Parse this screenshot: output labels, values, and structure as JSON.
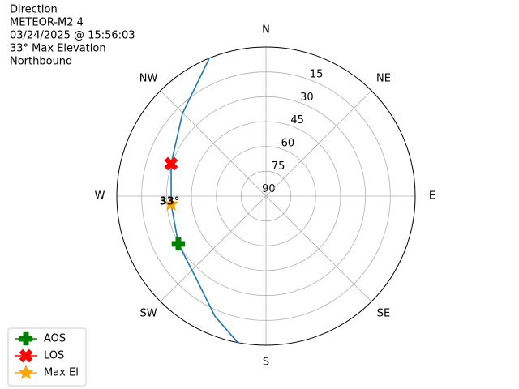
{
  "chart_data": {
    "type": "polar",
    "title": "Direction",
    "subtitle": [
      "METEOR-M2 4",
      "03/24/2025 @ 15:56:03",
      "33° Max Elevation",
      "Northbound"
    ],
    "theta_zero": "N",
    "theta_direction": "clockwise",
    "xlim": [
      0,
      360
    ],
    "xticks": [
      {
        "value": 0,
        "label": "N"
      },
      {
        "value": 45,
        "label": "NE"
      },
      {
        "value": 90,
        "label": "E"
      },
      {
        "value": 135,
        "label": "SE"
      },
      {
        "value": 180,
        "label": "S"
      },
      {
        "value": 225,
        "label": "SW"
      },
      {
        "value": 270,
        "label": "W"
      },
      {
        "value": 315,
        "label": "NW"
      }
    ],
    "ylim": [
      90,
      0
    ],
    "yticks": [
      90,
      75,
      60,
      45,
      30,
      15
    ],
    "grid": true,
    "legend": "lower left",
    "series": [
      {
        "color": "#1f77b4",
        "x": [
          190.9,
          203.1,
          221.9,
          241.4,
          265.1,
          288.9,
          314.7,
          337.7
        ],
        "values": [
          0,
          11.3,
          25.6,
          29.8,
          32.6,
          29.5,
          19.1,
          0
        ]
      },
      {
        "name": "AOS",
        "color": "green",
        "marker": "plus",
        "x": [
          241.4
        ],
        "values": [
          29.8
        ]
      },
      {
        "name": "LOS",
        "color": "red",
        "marker": "x",
        "x": [
          288.9
        ],
        "values": [
          29.5
        ]
      },
      {
        "name": "Max El",
        "color": "orange",
        "marker": "star",
        "x": [
          265.1
        ],
        "values": [
          32.6
        ]
      }
    ],
    "annotation": {
      "text": "33°",
      "series": 3
    }
  }
}
